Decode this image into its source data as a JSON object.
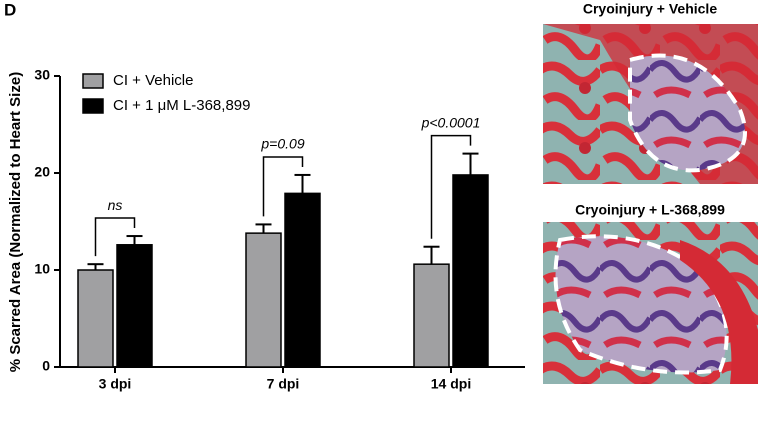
{
  "panel_label": "D",
  "chart_data": {
    "type": "bar",
    "ylabel": "% Scarred Area (Normalized to Heart Size)",
    "categories": [
      "3 dpi",
      "7 dpi",
      "14 dpi"
    ],
    "series": [
      {
        "name": "CI + Vehicle",
        "color": "#a0a0a2",
        "values": [
          10.0,
          13.8,
          10.6
        ],
        "errors": [
          0.6,
          0.9,
          1.8
        ]
      },
      {
        "name": "CI + 1 μM L-368,899",
        "color": "#000000",
        "values": [
          12.6,
          17.9,
          19.8
        ],
        "errors": [
          0.9,
          1.9,
          2.2
        ]
      }
    ],
    "annotations": [
      "ns",
      "p=0.09",
      "p<0.0001"
    ],
    "ylim": [
      0,
      30
    ],
    "yticks": [
      0,
      10,
      20,
      30
    ],
    "grid": false,
    "legend": "upper left"
  },
  "images": [
    {
      "title": "Cryoinjury + Vehicle"
    },
    {
      "title": "Cryoinjury + L-368,899"
    }
  ]
}
